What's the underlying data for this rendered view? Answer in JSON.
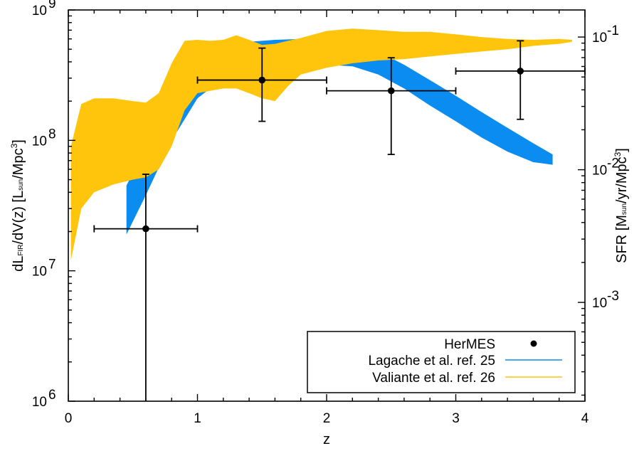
{
  "chart_data": {
    "type": "area",
    "x": {
      "label": "z",
      "range": [
        0,
        4
      ],
      "ticks": [
        0,
        1,
        2,
        3,
        4
      ],
      "tick_labels": [
        "0",
        "1",
        "2",
        "3",
        "4"
      ]
    },
    "y_left": {
      "label_main": "dL",
      "label_sub1": "FIR",
      "label_mid": "/dV(z) [L",
      "label_sub2": "sun",
      "label_mid2": "/Mpc",
      "label_sup": "3",
      "label_end": "]",
      "scale": "log",
      "range": [
        1000000,
        1000000000
      ],
      "ticks": [
        1000000,
        10000000,
        100000000,
        1000000000
      ],
      "tick_labels": [
        {
          "base": "10",
          "exp": "6"
        },
        {
          "base": "10",
          "exp": "7"
        },
        {
          "base": "10",
          "exp": "8"
        },
        {
          "base": "10",
          "exp": "9"
        }
      ]
    },
    "y_right": {
      "label_main": "SFR [M",
      "label_sub": "sun",
      "label_mid": "/yr/Mpc",
      "label_sup": "3",
      "label_end": "]",
      "scale": "log",
      "range": [
        0.00018,
        0.16
      ],
      "ticks": [
        0.001,
        0.01,
        0.1
      ],
      "tick_labels": [
        {
          "base": "10",
          "exp": "-3"
        },
        {
          "base": "10",
          "exp": "-2"
        },
        {
          "base": "10",
          "exp": "-1"
        }
      ]
    },
    "legend": {
      "placement": "bottom-right",
      "entries": [
        {
          "label": "HerMES",
          "marker": "circle",
          "color": "#000000"
        },
        {
          "label": "Lagache et al. ref. 25",
          "marker": "line",
          "color": "#0A8CF0"
        },
        {
          "label": "Valiante et al. ref. 26",
          "marker": "line",
          "color": "#FFC40C"
        }
      ]
    },
    "series": [
      {
        "name": "HerMES",
        "type": "scatter",
        "color": "#000000",
        "points": [
          {
            "x": 0.6,
            "y": 21000000,
            "xerr": [
              0.2,
              1.0
            ],
            "yerr": [
              800000,
              55000000
            ]
          },
          {
            "x": 1.5,
            "y": 290000000,
            "xerr": [
              1.0,
              2.0
            ],
            "yerr": [
              140000000,
              510000000
            ]
          },
          {
            "x": 2.5,
            "y": 240000000,
            "xerr": [
              2.0,
              3.0
            ],
            "yerr": [
              78000000,
              430000000
            ]
          },
          {
            "x": 3.5,
            "y": 340000000,
            "xerr": [
              3.0,
              4.0
            ],
            "yerr": [
              145000000,
              580000000
            ]
          }
        ]
      },
      {
        "name": "Lagache et al. ref. 25",
        "type": "band",
        "color": "#0A8CF0",
        "x": [
          0.45,
          0.6,
          0.8,
          1.0,
          1.2,
          1.4,
          1.6,
          1.8,
          2.0,
          2.2,
          2.4,
          2.6,
          2.8,
          3.0,
          3.2,
          3.4,
          3.6,
          3.75
        ],
        "upper": [
          45000000,
          90000000,
          200000000,
          420000000,
          560000000,
          570000000,
          590000000,
          600000000,
          600000000,
          560000000,
          480000000,
          380000000,
          290000000,
          220000000,
          165000000,
          125000000,
          95000000,
          78000000
        ],
        "lower": [
          19000000,
          38000000,
          100000000,
          210000000,
          300000000,
          330000000,
          350000000,
          360000000,
          380000000,
          370000000,
          320000000,
          250000000,
          185000000,
          140000000,
          105000000,
          82000000,
          68000000,
          65000000
        ]
      },
      {
        "name": "Valiante et al. ref. 26",
        "type": "band",
        "color": "#FFC40C",
        "x": [
          0.02,
          0.1,
          0.2,
          0.35,
          0.5,
          0.6,
          0.7,
          0.8,
          0.9,
          1.0,
          1.1,
          1.2,
          1.3,
          1.4,
          1.5,
          1.6,
          1.7,
          1.8,
          2.0,
          2.2,
          2.4,
          2.6,
          2.8,
          3.0,
          3.2,
          3.4,
          3.6,
          3.8,
          3.9
        ],
        "upper": [
          90000000,
          190000000,
          210000000,
          210000000,
          200000000,
          195000000,
          230000000,
          390000000,
          580000000,
          590000000,
          580000000,
          590000000,
          640000000,
          590000000,
          540000000,
          550000000,
          580000000,
          610000000,
          690000000,
          720000000,
          700000000,
          680000000,
          680000000,
          650000000,
          620000000,
          600000000,
          590000000,
          600000000,
          590000000
        ],
        "lower": [
          12000000,
          30000000,
          40000000,
          46000000,
          50000000,
          52000000,
          60000000,
          90000000,
          170000000,
          230000000,
          240000000,
          250000000,
          250000000,
          230000000,
          210000000,
          200000000,
          260000000,
          320000000,
          360000000,
          390000000,
          410000000,
          420000000,
          440000000,
          460000000,
          480000000,
          500000000,
          530000000,
          550000000,
          570000000
        ]
      }
    ]
  }
}
